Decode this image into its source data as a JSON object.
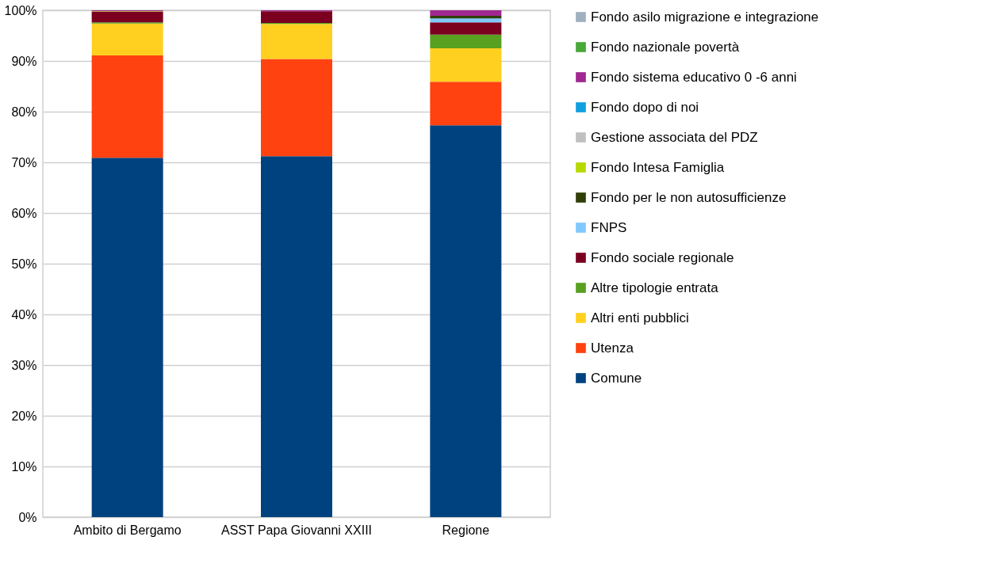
{
  "chart_data": {
    "type": "bar",
    "stacked": true,
    "categories": [
      "Ambito di Bergamo",
      "ASST Papa Giovanni XXIII",
      "Regione"
    ],
    "series": [
      {
        "name": "Comune",
        "color": "#00427f",
        "values": [
          70.9,
          71.2,
          77.3
        ]
      },
      {
        "name": "Utenza",
        "color": "#ff4210",
        "values": [
          20.2,
          19.2,
          8.6
        ]
      },
      {
        "name": "Altri enti pubblici",
        "color": "#ffd020",
        "values": [
          6.3,
          6.9,
          6.6
        ]
      },
      {
        "name": "Altre tipologie entrata",
        "color": "#58a020",
        "values": [
          0.2,
          0.2,
          2.7
        ]
      },
      {
        "name": "Fondo sociale regionale",
        "color": "#7b0020",
        "values": [
          2.1,
          2.3,
          2.4
        ]
      },
      {
        "name": "FNPS",
        "color": "#80c8ff",
        "values": [
          0,
          0,
          0.8
        ]
      },
      {
        "name": "Fondo per le non autosufficienze",
        "color": "#2f3f08",
        "values": [
          0,
          0,
          0.5
        ]
      },
      {
        "name": "Fondo Intesa Famiglia",
        "color": "#b8d800",
        "values": [
          0.1,
          0,
          0
        ]
      },
      {
        "name": "Gestione associata del PDZ",
        "color": "#c0c0c0",
        "values": [
          0,
          0,
          0
        ]
      },
      {
        "name": "Fondo dopo di noi",
        "color": "#10a0e0",
        "values": [
          0,
          0,
          0
        ]
      },
      {
        "name": "Fondo sistema educativo 0  -6 anni",
        "color": "#a02890",
        "values": [
          0.2,
          0.2,
          1.1
        ]
      },
      {
        "name": "Fondo nazionale povertà",
        "color": "#48a838",
        "values": [
          0,
          0,
          0
        ]
      },
      {
        "name": "Fondo asilo migrazione e integrazione",
        "color": "#a0b0c0",
        "values": [
          0,
          0,
          null
        ]
      }
    ],
    "ylim": [
      0,
      100
    ],
    "yticks": [
      {
        "value": 0,
        "label": "0%"
      },
      {
        "value": 10,
        "label": "10%"
      },
      {
        "value": 20,
        "label": "20%"
      },
      {
        "value": 30,
        "label": "30%"
      },
      {
        "value": 40,
        "label": "40%"
      },
      {
        "value": 50,
        "label": "50%"
      },
      {
        "value": 60,
        "label": "60%"
      },
      {
        "value": 70,
        "label": "70%"
      },
      {
        "value": 80,
        "label": "80%"
      },
      {
        "value": 90,
        "label": "90%"
      },
      {
        "value": 100,
        "label": "100%"
      }
    ],
    "grid": "y",
    "legend": "right"
  }
}
